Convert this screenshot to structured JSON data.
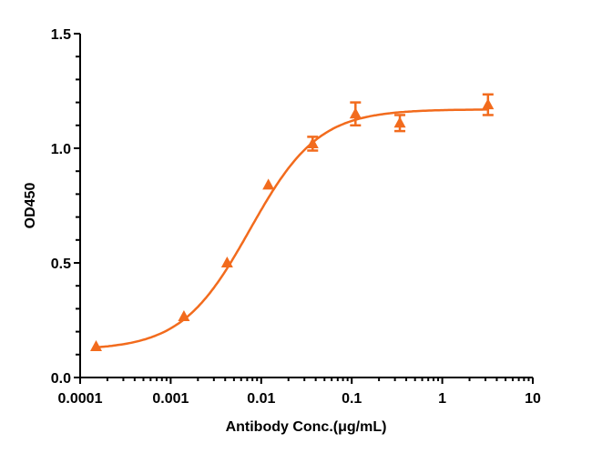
{
  "chart_data": {
    "type": "scatter",
    "title": "",
    "xlabel": "Antibody Conc.(μg/mL)",
    "ylabel": "OD450",
    "xscale": "log",
    "xlim": [
      0.0001,
      10
    ],
    "ylim": [
      0,
      1.5
    ],
    "x_ticks": [
      "0.0001",
      "0.001",
      "0.01",
      "0.1",
      "1",
      "10"
    ],
    "y_ticks": [
      "0.0",
      "0.5",
      "1.0",
      "1.5"
    ],
    "grid": false,
    "legend": null,
    "color": "#F26B1D",
    "marker": "triangle",
    "fit": "4PL sigmoid curve",
    "series": [
      {
        "name": "OD450",
        "x": [
          0.00015,
          0.0014,
          0.0042,
          0.012,
          0.037,
          0.11,
          0.34,
          3.2
        ],
        "y": [
          0.135,
          0.266,
          0.5,
          0.84,
          1.02,
          1.15,
          1.11,
          1.19
        ],
        "err": [
          0.0,
          0.0,
          0.0,
          0.0,
          0.03,
          0.05,
          0.035,
          0.045
        ]
      }
    ],
    "fit_params": {
      "bottom": 0.12,
      "top": 1.17,
      "ec50": 0.0075,
      "hill": 1.15
    }
  }
}
